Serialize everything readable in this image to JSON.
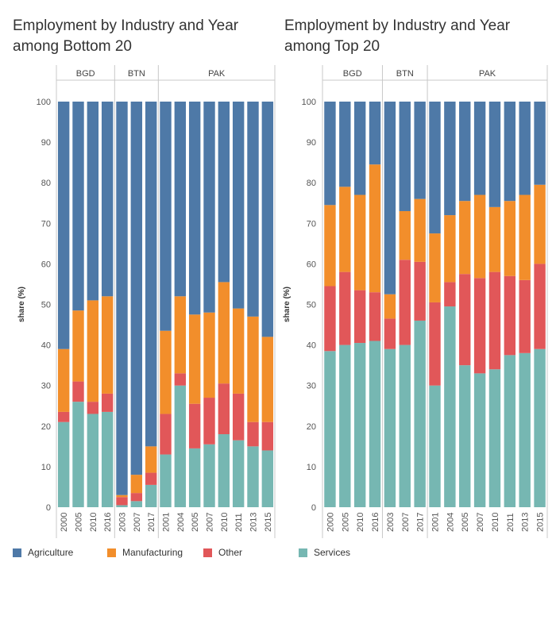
{
  "panels": [
    {
      "title": "Employment by Industry and Year among Bottom 20",
      "ylabel": "share (%)"
    },
    {
      "title": "Employment by Industry and Year among Top 20",
      "ylabel": "share (%)"
    }
  ],
  "legend": [
    {
      "label": "Agriculture",
      "color": "#4e79a7"
    },
    {
      "label": "Manufacturing",
      "color": "#f28e2b"
    },
    {
      "label": "Other",
      "color": "#e15759"
    },
    {
      "label": "Services",
      "color": "#76b7b2"
    }
  ],
  "chart_data": [
    {
      "type": "bar",
      "stacked": true,
      "title": "Employment by Industry and Year among Bottom 20",
      "ylabel": "share (%)",
      "ylim": [
        0,
        100
      ],
      "yticks": [
        0,
        10,
        20,
        30,
        40,
        50,
        60,
        70,
        80,
        90,
        100
      ],
      "groups": [
        {
          "label": "BGD",
          "categories": [
            "2000",
            "2005",
            "2010",
            "2016"
          ]
        },
        {
          "label": "BTN",
          "categories": [
            "2003",
            "2007",
            "2017"
          ]
        },
        {
          "label": "PAK",
          "categories": [
            "2001",
            "2004",
            "2005",
            "2007",
            "2010",
            "2011",
            "2013",
            "2015"
          ]
        }
      ],
      "categories": [
        "2000",
        "2005",
        "2010",
        "2016",
        "2003",
        "2007",
        "2017",
        "2001",
        "2004",
        "2005",
        "2007",
        "2010",
        "2011",
        "2013",
        "2015"
      ],
      "series": [
        {
          "name": "Services",
          "values": [
            21,
            26,
            23,
            23.5,
            0.5,
            1.5,
            5.5,
            13,
            30,
            14.5,
            15.5,
            18,
            16.5,
            15,
            14
          ]
        },
        {
          "name": "Other",
          "values": [
            2.5,
            5,
            3,
            4.5,
            2,
            2,
            3,
            10,
            3,
            11,
            11.5,
            12.5,
            11.5,
            6,
            7
          ]
        },
        {
          "name": "Manufacturing",
          "values": [
            15.5,
            17.5,
            25,
            24,
            0.5,
            4.5,
            6.5,
            20.5,
            19,
            22,
            21,
            25,
            21,
            26,
            21
          ]
        },
        {
          "name": "Agriculture",
          "values": [
            61,
            51.5,
            49,
            48,
            97,
            92,
            85,
            56.5,
            48,
            52.5,
            52,
            44.5,
            51,
            53,
            58
          ]
        }
      ]
    },
    {
      "type": "bar",
      "stacked": true,
      "title": "Employment by Industry and Year among Top 20",
      "ylabel": "share (%)",
      "ylim": [
        0,
        100
      ],
      "yticks": [
        0,
        10,
        20,
        30,
        40,
        50,
        60,
        70,
        80,
        90,
        100
      ],
      "groups": [
        {
          "label": "BGD",
          "categories": [
            "2000",
            "2005",
            "2010",
            "2016"
          ]
        },
        {
          "label": "BTN",
          "categories": [
            "2003",
            "2007",
            "2017"
          ]
        },
        {
          "label": "PAK",
          "categories": [
            "2001",
            "2004",
            "2005",
            "2007",
            "2010",
            "2011",
            "2013",
            "2015"
          ]
        }
      ],
      "categories": [
        "2000",
        "2005",
        "2010",
        "2016",
        "2003",
        "2007",
        "2017",
        "2001",
        "2004",
        "2005",
        "2007",
        "2010",
        "2011",
        "2013",
        "2015"
      ],
      "series": [
        {
          "name": "Services",
          "values": [
            38.5,
            40,
            40.5,
            41,
            39,
            40,
            46,
            30,
            49.5,
            35,
            33,
            34,
            37.5,
            38,
            39
          ]
        },
        {
          "name": "Other",
          "values": [
            16,
            18,
            13,
            12,
            7.5,
            21,
            14.5,
            20.5,
            6,
            22.5,
            23.5,
            24,
            19.5,
            18,
            21
          ]
        },
        {
          "name": "Manufacturing",
          "values": [
            20,
            21,
            23.5,
            31.5,
            6,
            12,
            15.5,
            17,
            16.5,
            18,
            20.5,
            16,
            18.5,
            21,
            19.5
          ]
        },
        {
          "name": "Agriculture",
          "values": [
            25.5,
            21,
            23,
            15.5,
            47.5,
            27,
            24,
            32.5,
            28,
            24.5,
            23,
            26,
            24.5,
            23,
            20.5
          ]
        }
      ]
    }
  ]
}
